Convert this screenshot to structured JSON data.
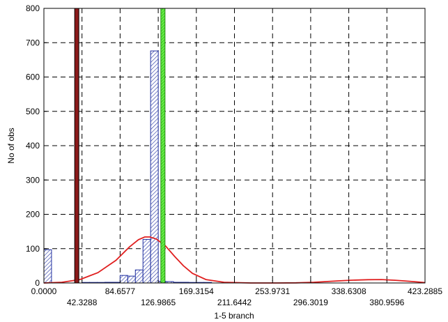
{
  "chart_data": {
    "type": "bar",
    "xlabel": "1-5 branch",
    "ylabel": "No of obs",
    "xlim": [
      0,
      423.2885
    ],
    "ylim": [
      0,
      800
    ],
    "grid": true,
    "x_ticks": [
      "0.0000",
      "42.3288",
      "84.6577",
      "126.9865",
      "169.3154",
      "211.6442",
      "253.9731",
      "296.3019",
      "338.6308",
      "380.9596",
      "423.2885"
    ],
    "x_tick_values": [
      0,
      42.3288,
      84.6577,
      126.9865,
      169.3154,
      211.6442,
      253.9731,
      296.3019,
      338.6308,
      380.9596,
      423.2885
    ],
    "y_ticks": [
      0,
      100,
      200,
      300,
      400,
      500,
      600,
      700,
      800
    ],
    "bin_width": 8.4658,
    "bins": [
      {
        "x0": 0.0,
        "value": 97
      },
      {
        "x0": 42.33,
        "value": 1
      },
      {
        "x0": 50.79,
        "value": 1
      },
      {
        "x0": 59.26,
        "value": 1
      },
      {
        "x0": 67.73,
        "value": 2
      },
      {
        "x0": 76.19,
        "value": 2
      },
      {
        "x0": 84.66,
        "value": 22
      },
      {
        "x0": 93.12,
        "value": 20
      },
      {
        "x0": 101.59,
        "value": 38
      },
      {
        "x0": 110.05,
        "value": 127
      },
      {
        "x0": 118.52,
        "value": 676
      },
      {
        "x0": 126.99,
        "value": 5
      },
      {
        "x0": 135.45,
        "value": 4
      },
      {
        "x0": 143.92,
        "value": 2
      },
      {
        "x0": 152.38,
        "value": 2
      },
      {
        "x0": 160.85,
        "value": 1
      },
      {
        "x0": 169.32,
        "value": 1
      },
      {
        "x0": 177.78,
        "value": 1
      }
    ],
    "fit_curve": {
      "color": "#e02020",
      "points": [
        [
          0,
          0
        ],
        [
          20,
          2
        ],
        [
          40,
          10
        ],
        [
          60,
          30
        ],
        [
          80,
          66
        ],
        [
          95,
          105
        ],
        [
          105,
          126
        ],
        [
          112,
          134
        ],
        [
          118,
          134
        ],
        [
          125,
          128
        ],
        [
          135,
          108
        ],
        [
          145,
          78
        ],
        [
          155,
          50
        ],
        [
          165,
          28
        ],
        [
          180,
          10
        ],
        [
          200,
          2
        ],
        [
          230,
          0
        ],
        [
          260,
          0
        ],
        [
          280,
          0.5
        ],
        [
          300,
          2
        ],
        [
          320,
          5
        ],
        [
          340,
          8
        ],
        [
          360,
          9.5
        ],
        [
          375,
          10
        ],
        [
          390,
          8
        ],
        [
          405,
          5
        ],
        [
          415,
          3
        ],
        [
          423.2885,
          1
        ]
      ]
    },
    "markers": [
      {
        "x": 36.5,
        "color": "#8b1a1a",
        "edge": "#000000",
        "label": "marker-dark-red"
      },
      {
        "x": 132.2,
        "color": "#44dd22",
        "edge": "#228811",
        "label": "marker-green"
      }
    ],
    "bar_color": "#1f2fa0"
  }
}
